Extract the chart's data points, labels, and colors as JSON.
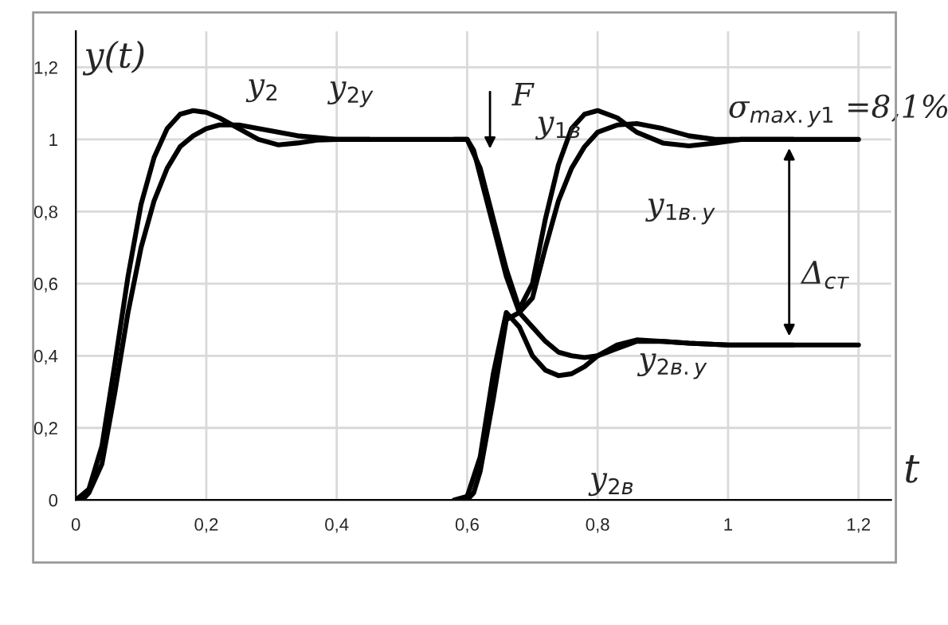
{
  "chart_data": {
    "type": "line",
    "xlabel": "t",
    "ylabel": "y(t)",
    "xlim": [
      0,
      1.25
    ],
    "ylim": [
      0,
      1.3
    ],
    "xticks": [
      {
        "value": 0,
        "label": "0"
      },
      {
        "value": 0.2,
        "label": "0,2"
      },
      {
        "value": 0.4,
        "label": "0,4"
      },
      {
        "value": 0.6,
        "label": "0,6"
      },
      {
        "value": 0.8,
        "label": "0,8"
      },
      {
        "value": 1,
        "label": "1"
      },
      {
        "value": 1.2,
        "label": "1,2"
      }
    ],
    "yticks": [
      {
        "value": 0,
        "label": "0"
      },
      {
        "value": 0.2,
        "label": "0,2"
      },
      {
        "value": 0.4,
        "label": "0,4"
      },
      {
        "value": 0.6,
        "label": "0,6"
      },
      {
        "value": 0.8,
        "label": "0,8"
      },
      {
        "value": 1,
        "label": "1"
      },
      {
        "value": 1.2,
        "label": "1,2"
      }
    ],
    "grid": true,
    "line_style": "solid",
    "marker": "none",
    "series": [
      {
        "color": "#000000",
        "x": [
          0,
          0.02,
          0.04,
          0.06,
          0.08,
          0.1,
          0.12,
          0.14,
          0.16,
          0.18,
          0.2,
          0.22,
          0.25,
          0.28,
          0.31,
          0.34,
          0.37,
          0.4,
          0.5,
          0.6
        ],
        "values": [
          0,
          0.03,
          0.15,
          0.38,
          0.62,
          0.82,
          0.95,
          1.03,
          1.07,
          1.08,
          1.075,
          1.06,
          1.03,
          1.0,
          0.985,
          0.99,
          0.998,
          1.0,
          1.0,
          1.0
        ]
      },
      {
        "color": "#000000",
        "x": [
          0.01,
          0.02,
          0.04,
          0.06,
          0.08,
          0.1,
          0.12,
          0.14,
          0.16,
          0.18,
          0.2,
          0.22,
          0.25,
          0.28,
          0.31,
          0.34,
          0.37,
          0.4,
          0.45
        ],
        "values": [
          0,
          0.02,
          0.1,
          0.3,
          0.52,
          0.7,
          0.83,
          0.92,
          0.98,
          1.01,
          1.03,
          1.04,
          1.04,
          1.03,
          1.02,
          1.01,
          1.005,
          1.0,
          1.0
        ]
      },
      {
        "color": "#000000",
        "x": [
          0.58,
          0.6,
          0.62,
          0.64,
          0.66,
          0.68,
          0.7,
          0.72,
          0.74,
          0.76,
          0.78,
          0.8,
          0.83,
          0.86,
          0.9,
          0.94,
          0.98,
          1.02,
          1.1,
          1.2
        ],
        "values": [
          1,
          1.0,
          0.92,
          0.78,
          0.64,
          0.53,
          0.6,
          0.78,
          0.93,
          1.03,
          1.07,
          1.08,
          1.06,
          1.02,
          0.99,
          0.982,
          0.99,
          1.0,
          1.0,
          1.0
        ]
      },
      {
        "color": "#000000",
        "x": [
          0.6,
          0.61,
          0.62,
          0.64,
          0.66,
          0.68,
          0.7,
          0.72,
          0.74,
          0.76,
          0.78,
          0.8,
          0.83,
          0.86,
          0.9,
          0.94,
          0.98,
          1.02,
          1.1
        ],
        "values": [
          1,
          0.97,
          0.9,
          0.76,
          0.62,
          0.52,
          0.56,
          0.7,
          0.83,
          0.92,
          0.98,
          1.02,
          1.04,
          1.044,
          1.03,
          1.01,
          1.0,
          1.0,
          1.0
        ]
      },
      {
        "color": "#000000",
        "x": [
          0.58,
          0.6,
          0.62,
          0.64,
          0.66,
          0.68,
          0.7,
          0.72,
          0.74,
          0.76,
          0.78,
          0.8,
          0.83,
          0.86,
          0.9,
          0.94,
          1.0,
          1.1,
          1.2
        ],
        "values": [
          0,
          0.01,
          0.12,
          0.35,
          0.52,
          0.48,
          0.4,
          0.36,
          0.345,
          0.35,
          0.37,
          0.4,
          0.43,
          0.444,
          0.44,
          0.435,
          0.43,
          0.43,
          0.43
        ]
      },
      {
        "color": "#000000",
        "x": [
          0.6,
          0.61,
          0.62,
          0.64,
          0.66,
          0.68,
          0.7,
          0.72,
          0.74,
          0.76,
          0.78,
          0.8,
          0.83,
          0.86,
          0.9,
          0.94,
          1.0,
          1.1
        ],
        "values": [
          0,
          0.02,
          0.08,
          0.28,
          0.5,
          0.52,
          0.48,
          0.44,
          0.41,
          0.4,
          0.395,
          0.4,
          0.42,
          0.44,
          0.44,
          0.435,
          0.43,
          0.43
        ]
      }
    ],
    "annotations": [
      "y$_{2}$",
      "y$_{2у}$",
      "F",
      "y$_{1в}$",
      "y$_{1в.у}$",
      "σ$_{max.y1}$ =8,1%",
      "y$_{2в.у}$",
      "y$_{2в}$",
      "Δ$_{ст}$"
    ]
  }
}
